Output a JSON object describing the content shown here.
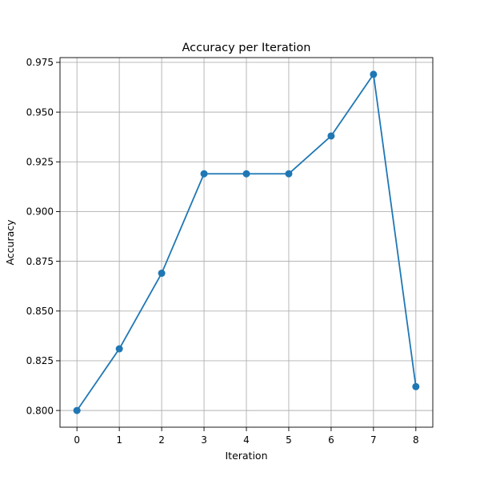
{
  "chart_data": {
    "type": "line",
    "title": "Accuracy per Iteration",
    "xlabel": "Iteration",
    "ylabel": "Accuracy",
    "x": [
      0,
      1,
      2,
      3,
      4,
      5,
      6,
      7,
      8
    ],
    "series": [
      {
        "values": [
          0.8,
          0.831,
          0.869,
          0.919,
          0.919,
          0.919,
          0.938,
          0.969,
          0.812
        ],
        "color": "#1f77b4",
        "marker": "circle"
      }
    ],
    "xticks": [
      "0",
      "1",
      "2",
      "3",
      "4",
      "5",
      "6",
      "7",
      "8"
    ],
    "yticks": [
      "0.800",
      "0.825",
      "0.850",
      "0.875",
      "0.900",
      "0.925",
      "0.950",
      "0.975"
    ],
    "xlim": [
      -0.4,
      8.4
    ],
    "ylim": [
      0.7916,
      0.9774
    ],
    "grid": true,
    "legend": "none"
  }
}
